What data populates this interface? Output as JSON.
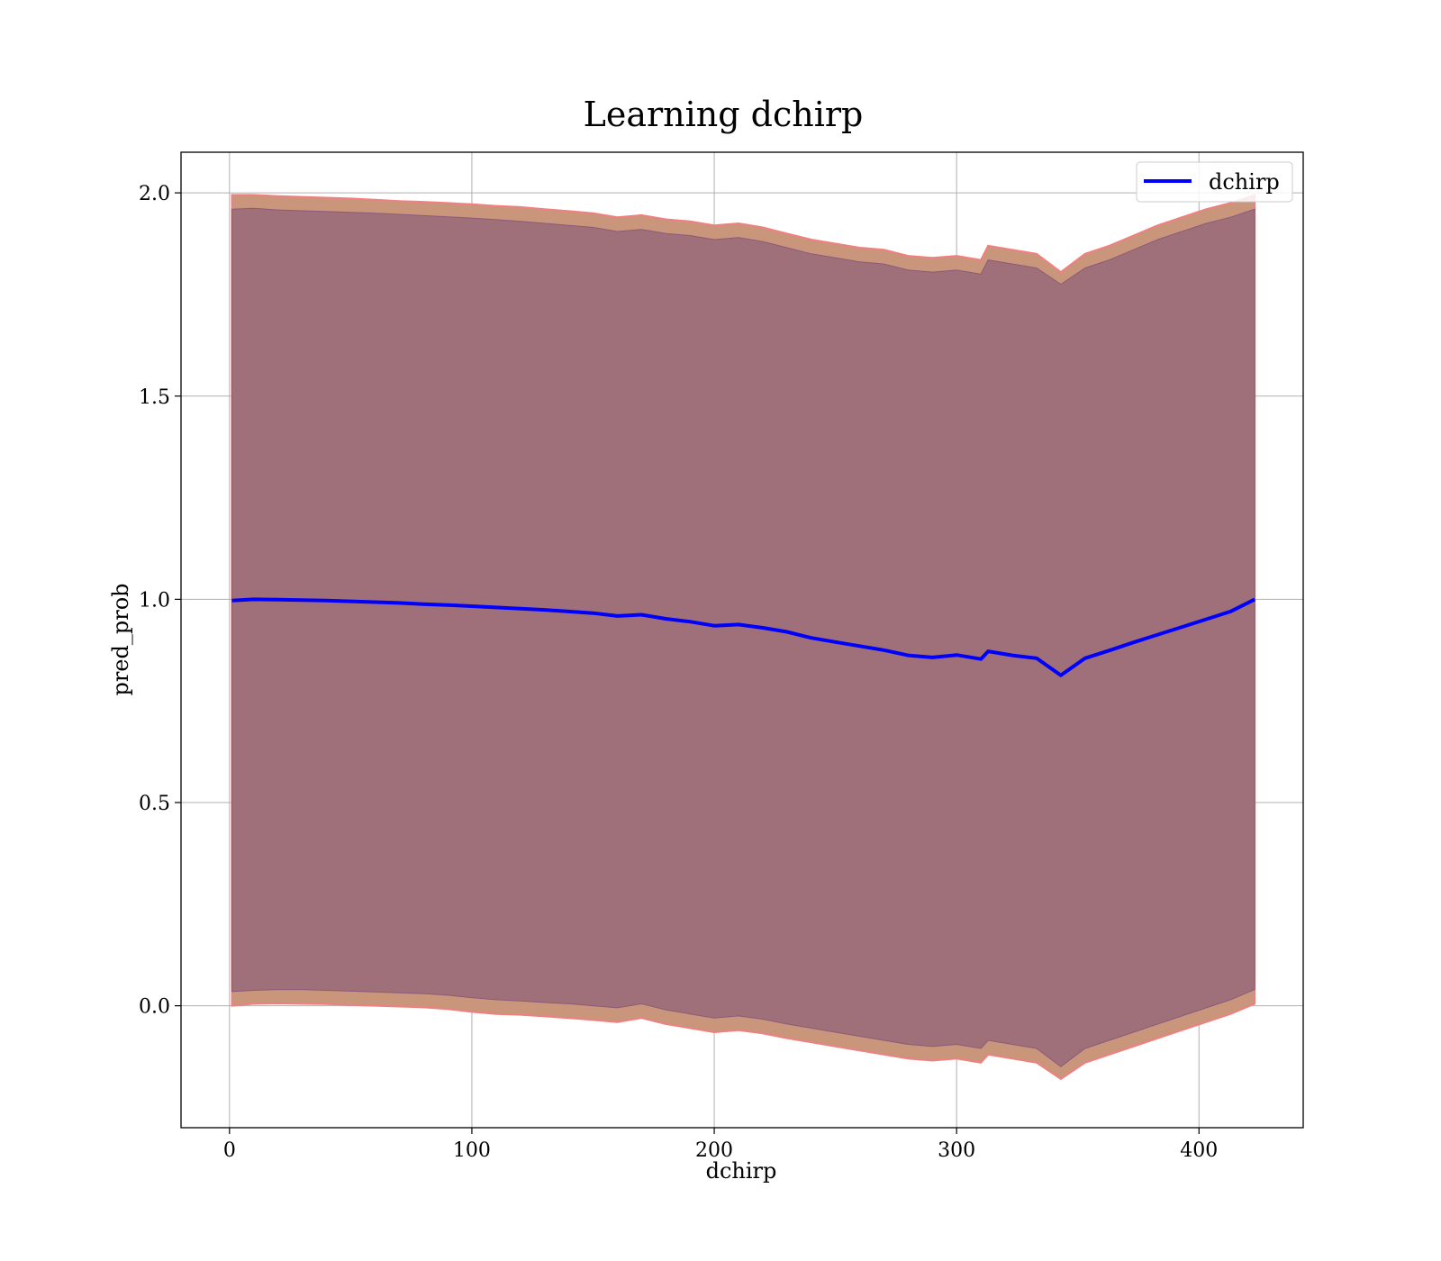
{
  "chart_data": {
    "type": "line",
    "title": "Learning dchirp",
    "xlabel": "dchirp",
    "ylabel": "pred_prob",
    "xlim": [
      -20,
      443
    ],
    "ylim": [
      -0.3,
      2.1
    ],
    "xticks": [
      0,
      100,
      200,
      300,
      400
    ],
    "xtick_labels": [
      "0",
      "100",
      "200",
      "300",
      "400"
    ],
    "yticks": [
      0.0,
      0.5,
      1.0,
      1.5,
      2.0
    ],
    "ytick_labels": [
      "0.0",
      "0.5",
      "1.0",
      "1.5",
      "2.0"
    ],
    "grid": true,
    "legend_position": "top-right",
    "colors": {
      "line": "#0000ff",
      "outer_band": "#c9957b",
      "outer_band_edge": "#f08080",
      "inner_band": "#a0707a",
      "inner_band_edge": "#8a5a7a",
      "grid": "#b0b0b0"
    },
    "series": [
      {
        "name": "dchirp",
        "x": [
          1,
          10,
          20,
          30,
          40,
          50,
          60,
          70,
          80,
          90,
          100,
          110,
          120,
          130,
          140,
          150,
          160,
          170,
          180,
          190,
          200,
          210,
          220,
          230,
          240,
          250,
          260,
          270,
          280,
          290,
          300,
          310,
          313,
          323,
          333,
          343,
          353,
          363,
          373,
          383,
          393,
          403,
          413,
          423
        ],
        "y": [
          0.997,
          1.0,
          0.999,
          0.998,
          0.997,
          0.995,
          0.993,
          0.991,
          0.988,
          0.986,
          0.983,
          0.98,
          0.977,
          0.974,
          0.97,
          0.966,
          0.959,
          0.962,
          0.952,
          0.945,
          0.935,
          0.938,
          0.93,
          0.92,
          0.905,
          0.895,
          0.885,
          0.875,
          0.862,
          0.857,
          0.863,
          0.853,
          0.872,
          0.862,
          0.855,
          0.813,
          0.855,
          0.874,
          0.894,
          0.913,
          0.932,
          0.951,
          0.97,
          1.0
        ]
      }
    ],
    "bands": {
      "outer_upper": [
        1.995,
        1.995,
        1.992,
        1.99,
        1.988,
        1.986,
        1.983,
        1.98,
        1.978,
        1.975,
        1.972,
        1.968,
        1.965,
        1.96,
        1.955,
        1.95,
        1.94,
        1.945,
        1.935,
        1.93,
        1.92,
        1.925,
        1.915,
        1.9,
        1.885,
        1.875,
        1.865,
        1.86,
        1.845,
        1.84,
        1.845,
        1.835,
        1.87,
        1.86,
        1.85,
        1.805,
        1.85,
        1.87,
        1.895,
        1.92,
        1.94,
        1.96,
        1.975,
        1.995
      ],
      "outer_lower": [
        0.0,
        0.005,
        0.006,
        0.005,
        0.004,
        0.002,
        0.0,
        -0.002,
        -0.004,
        -0.008,
        -0.015,
        -0.02,
        -0.022,
        -0.026,
        -0.03,
        -0.035,
        -0.04,
        -0.03,
        -0.045,
        -0.055,
        -0.065,
        -0.06,
        -0.068,
        -0.08,
        -0.09,
        -0.1,
        -0.11,
        -0.12,
        -0.13,
        -0.135,
        -0.13,
        -0.14,
        -0.12,
        -0.13,
        -0.14,
        -0.18,
        -0.14,
        -0.12,
        -0.1,
        -0.08,
        -0.06,
        -0.04,
        -0.02,
        0.005
      ],
      "inner_upper": [
        1.96,
        1.962,
        1.958,
        1.956,
        1.954,
        1.952,
        1.95,
        1.947,
        1.944,
        1.941,
        1.938,
        1.934,
        1.93,
        1.925,
        1.92,
        1.915,
        1.905,
        1.91,
        1.9,
        1.895,
        1.885,
        1.89,
        1.88,
        1.865,
        1.85,
        1.84,
        1.83,
        1.825,
        1.81,
        1.805,
        1.81,
        1.8,
        1.835,
        1.825,
        1.815,
        1.775,
        1.815,
        1.835,
        1.86,
        1.885,
        1.905,
        1.925,
        1.94,
        1.96
      ],
      "inner_lower": [
        0.035,
        0.038,
        0.04,
        0.04,
        0.038,
        0.036,
        0.034,
        0.032,
        0.03,
        0.026,
        0.02,
        0.015,
        0.012,
        0.008,
        0.005,
        0.0,
        -0.005,
        0.005,
        -0.01,
        -0.02,
        -0.03,
        -0.025,
        -0.033,
        -0.045,
        -0.055,
        -0.065,
        -0.075,
        -0.085,
        -0.095,
        -0.1,
        -0.095,
        -0.105,
        -0.085,
        -0.095,
        -0.105,
        -0.15,
        -0.105,
        -0.085,
        -0.065,
        -0.045,
        -0.025,
        -0.005,
        0.015,
        0.04
      ]
    }
  }
}
